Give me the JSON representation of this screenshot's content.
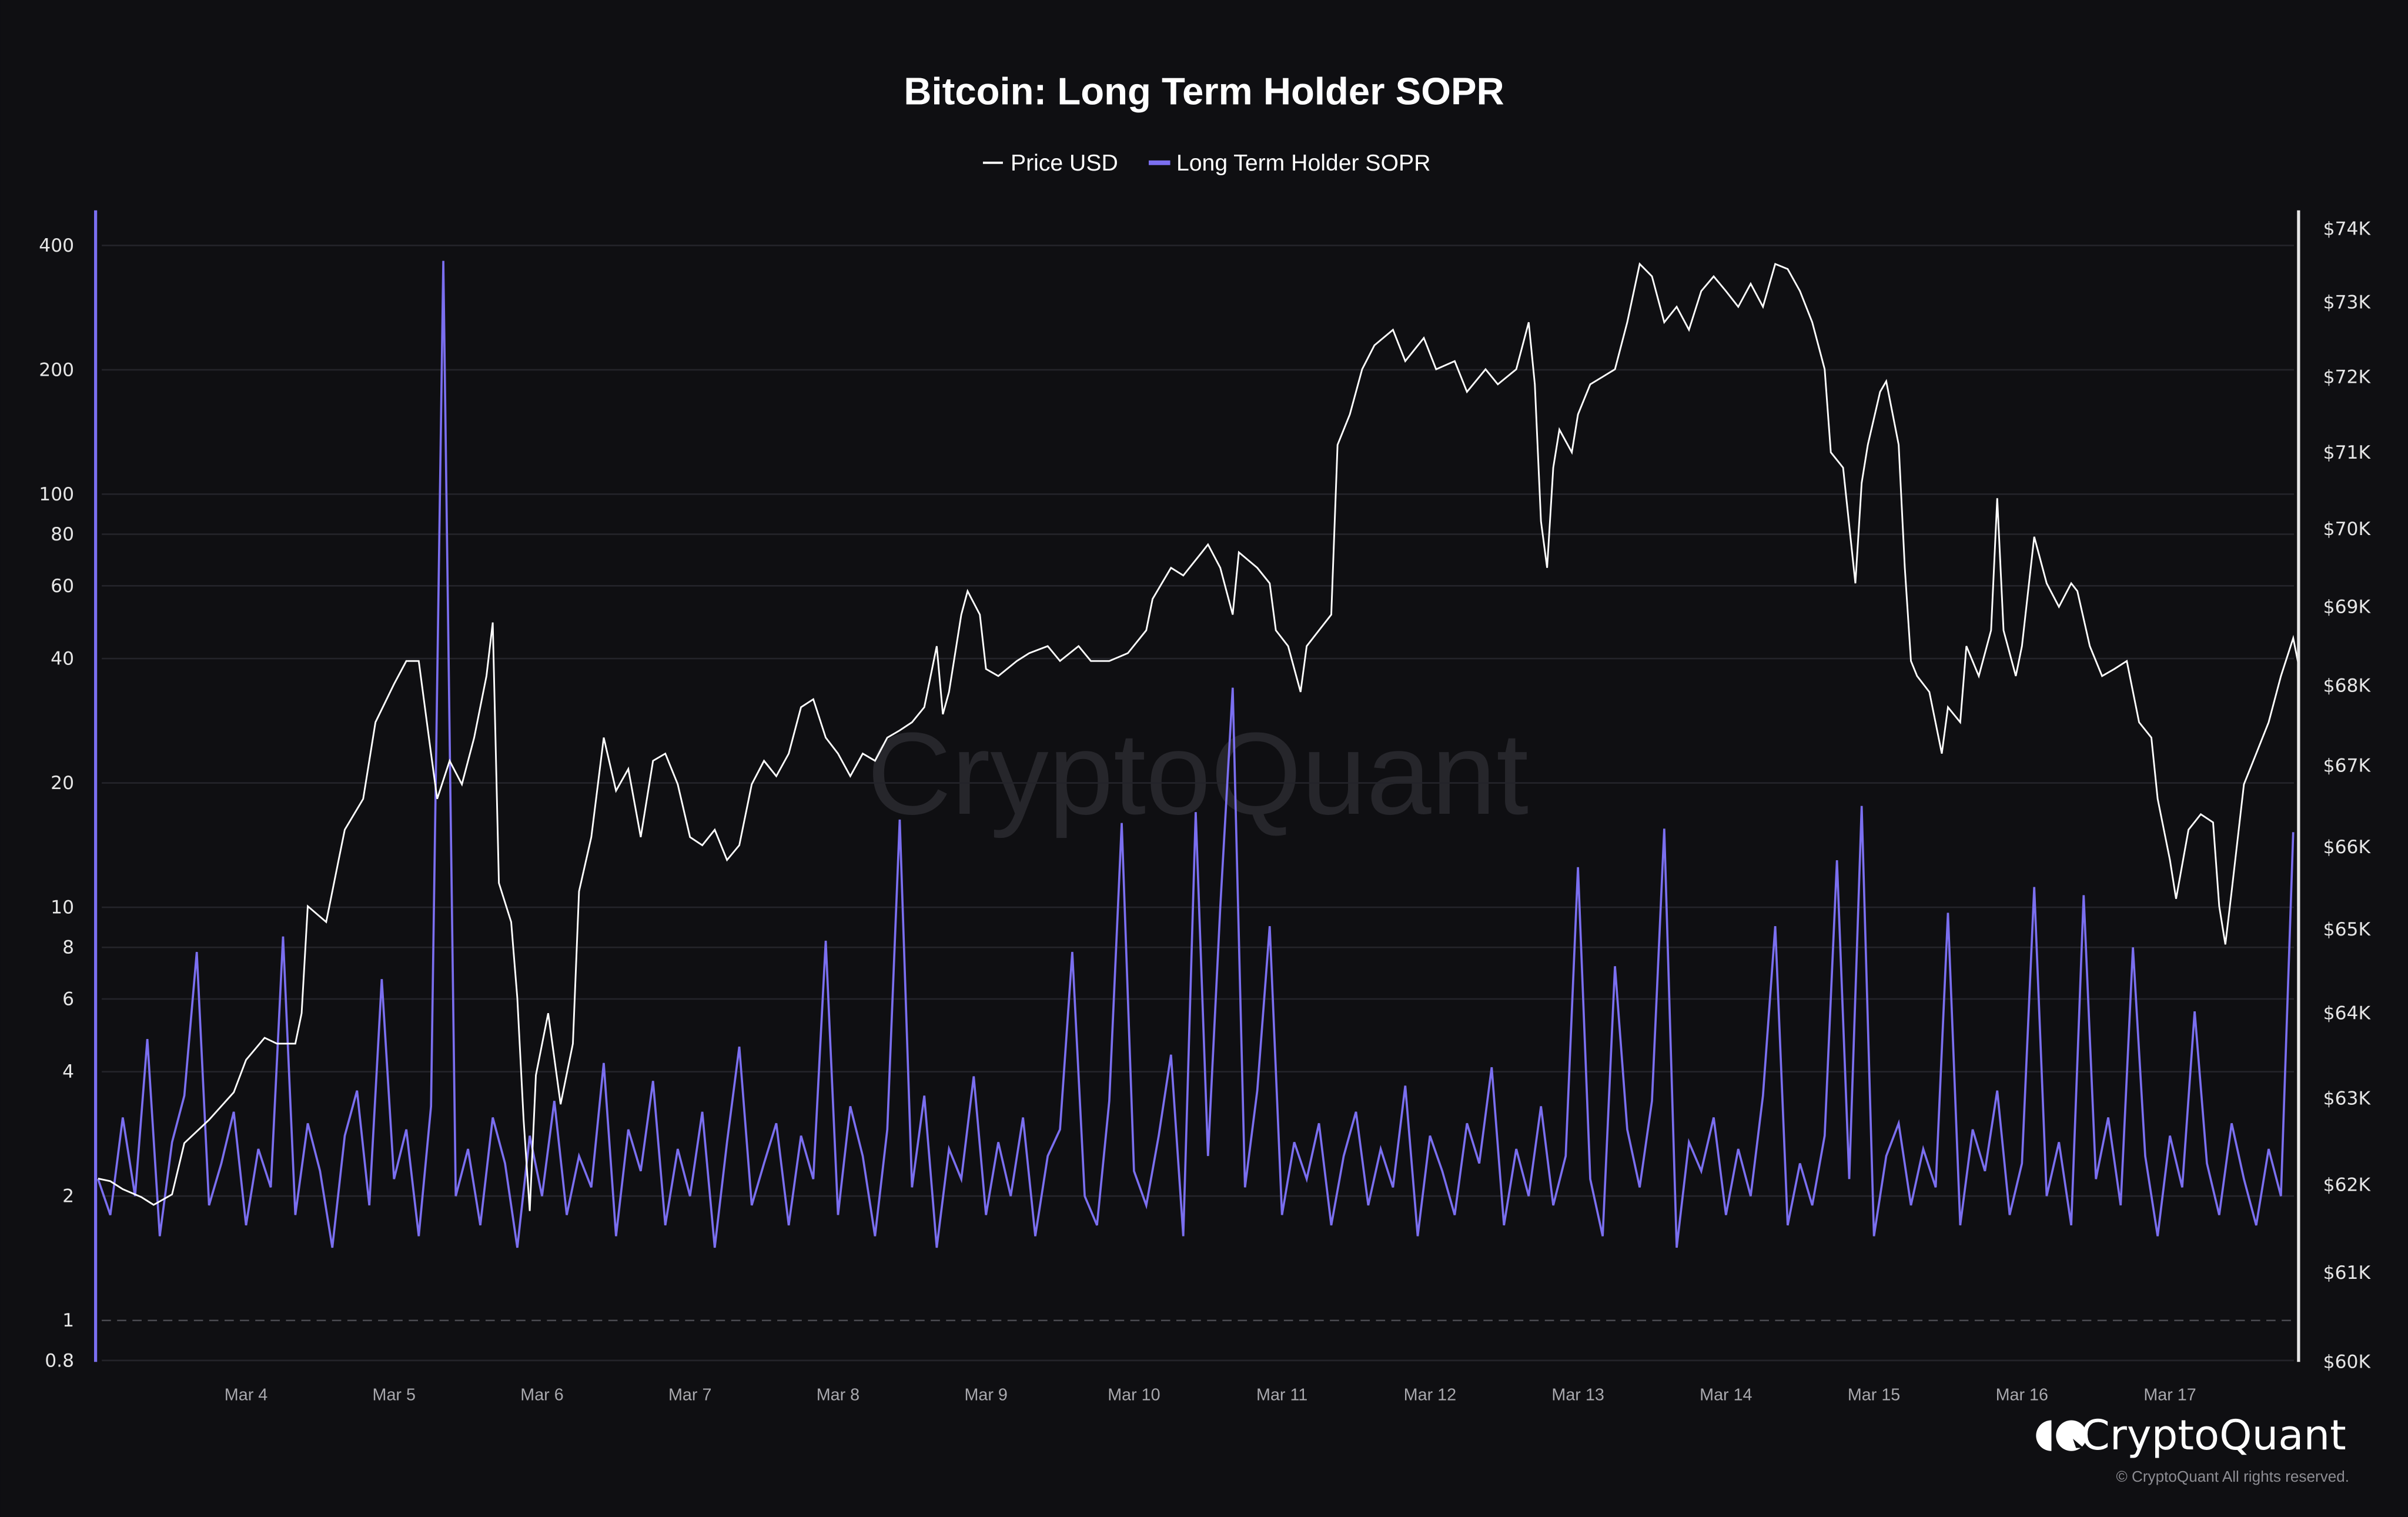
{
  "chart_data": {
    "type": "line",
    "title": "Bitcoin: Long Term Holder SOPR",
    "legend_position": "top-center",
    "grid": true,
    "colors": {
      "background": "#0f0f12",
      "price": "#ffffff",
      "sopr": "#7b6ff0"
    },
    "legend": [
      {
        "name": "Price USD",
        "color": "#ffffff"
      },
      {
        "name": "Long Term Holder SOPR",
        "color": "#7b6ff0"
      }
    ],
    "x_ticks": [
      "Mar 4",
      "Mar 5",
      "Mar 6",
      "Mar 7",
      "Mar 8",
      "Mar 9",
      "Mar 10",
      "Mar 11",
      "Mar 12",
      "Mar 13",
      "Mar 14",
      "Mar 15",
      "Mar 16",
      "Mar 17"
    ],
    "y_left": {
      "scale": "log",
      "range": [
        0.8,
        450
      ],
      "ticks": [
        "400",
        "200",
        "100",
        "80",
        "60",
        "40",
        "20",
        "10",
        "8",
        "6",
        "4",
        "2",
        "1",
        "0.8"
      ],
      "reference_line": 1
    },
    "y_right": {
      "scale": "log",
      "range": [
        60000,
        74000
      ],
      "ticks": [
        "$74K",
        "$73K",
        "$72K",
        "$71K",
        "$70K",
        "$69K",
        "$68K",
        "$67K",
        "$66K",
        "$65K",
        "$64K",
        "$63K",
        "$62K",
        "$61K",
        "$60K"
      ]
    },
    "series": [
      {
        "name": "Price USD",
        "axis": "right",
        "points": [
          [
            "Mar 3 00:00",
            62070
          ],
          [
            "Mar 3 02:00",
            62040
          ],
          [
            "Mar 3 04:00",
            61950
          ],
          [
            "Mar 3 07:00",
            61860
          ],
          [
            "Mar 3 09:00",
            61770
          ],
          [
            "Mar 3 12:00",
            61890
          ],
          [
            "Mar 3 14:00",
            62480
          ],
          [
            "Mar 3 18:00",
            62750
          ],
          [
            "Mar 3 22:00",
            63070
          ],
          [
            "Mar 4 00:00",
            63450
          ],
          [
            "Mar 4 03:00",
            63710
          ],
          [
            "Mar 4 05:00",
            63640
          ],
          [
            "Mar 4 08:00",
            63640
          ],
          [
            "Mar 4 09:00",
            64000
          ],
          [
            "Mar 4 10:00",
            65280
          ],
          [
            "Mar 4 13:00",
            65090
          ],
          [
            "Mar 4 15:00",
            65840
          ],
          [
            "Mar 4 16:00",
            66210
          ],
          [
            "Mar 4 19:00",
            66590
          ],
          [
            "Mar 4 21:00",
            67540
          ],
          [
            "Mar 5 00:00",
            68020
          ],
          [
            "Mar 5 02:00",
            68310
          ],
          [
            "Mar 5 04:00",
            68310
          ],
          [
            "Mar 5 06:00",
            67150
          ],
          [
            "Mar 5 07:00",
            66590
          ],
          [
            "Mar 5 09:00",
            67060
          ],
          [
            "Mar 5 11:00",
            66770
          ],
          [
            "Mar 5 13:00",
            67350
          ],
          [
            "Mar 5 15:00",
            68120
          ],
          [
            "Mar 5 16:00",
            68800
          ],
          [
            "Mar 5 17:00",
            65560
          ],
          [
            "Mar 5 19:00",
            65090
          ],
          [
            "Mar 5 20:00",
            64180
          ],
          [
            "Mar 5 21:00",
            62750
          ],
          [
            "Mar 5 22:00",
            61700
          ],
          [
            "Mar 5 23:00",
            63270
          ],
          [
            "Mar 6 01:00",
            64000
          ],
          [
            "Mar 6 03:00",
            62930
          ],
          [
            "Mar 6 05:00",
            63640
          ],
          [
            "Mar 6 06:00",
            65460
          ],
          [
            "Mar 6 08:00",
            66120
          ],
          [
            "Mar 6 10:00",
            67350
          ],
          [
            "Mar 6 12:00",
            66690
          ],
          [
            "Mar 6 14:00",
            66960
          ],
          [
            "Mar 6 16:00",
            66120
          ],
          [
            "Mar 6 18:00",
            67060
          ],
          [
            "Mar 6 20:00",
            67150
          ],
          [
            "Mar 6 22:00",
            66770
          ],
          [
            "Mar 7 00:00",
            66120
          ],
          [
            "Mar 7 02:00",
            66020
          ],
          [
            "Mar 7 04:00",
            66210
          ],
          [
            "Mar 7 06:00",
            65840
          ],
          [
            "Mar 7 08:00",
            66020
          ],
          [
            "Mar 7 10:00",
            66770
          ],
          [
            "Mar 7 12:00",
            67060
          ],
          [
            "Mar 7 14:00",
            66870
          ],
          [
            "Mar 7 16:00",
            67150
          ],
          [
            "Mar 7 18:00",
            67730
          ],
          [
            "Mar 7 20:00",
            67830
          ],
          [
            "Mar 7 22:00",
            67350
          ],
          [
            "Mar 8 00:00",
            67150
          ],
          [
            "Mar 8 02:00",
            66870
          ],
          [
            "Mar 8 04:00",
            67150
          ],
          [
            "Mar 8 06:00",
            67060
          ],
          [
            "Mar 8 08:00",
            67350
          ],
          [
            "Mar 8 10:00",
            67440
          ],
          [
            "Mar 8 12:00",
            67540
          ],
          [
            "Mar 8 14:00",
            67730
          ],
          [
            "Mar 8 16:00",
            68500
          ],
          [
            "Mar 8 17:00",
            67640
          ],
          [
            "Mar 8 18:00",
            67920
          ],
          [
            "Mar 8 20:00",
            68900
          ],
          [
            "Mar 8 21:00",
            69200
          ],
          [
            "Mar 8 23:00",
            68900
          ],
          [
            "Mar 9 00:00",
            68210
          ],
          [
            "Mar 9 02:00",
            68120
          ],
          [
            "Mar 9 05:00",
            68310
          ],
          [
            "Mar 9 07:00",
            68410
          ],
          [
            "Mar 9 10:00",
            68500
          ],
          [
            "Mar 9 12:00",
            68310
          ],
          [
            "Mar 9 15:00",
            68500
          ],
          [
            "Mar 9 17:00",
            68310
          ],
          [
            "Mar 9 20:00",
            68310
          ],
          [
            "Mar 9 23:00",
            68410
          ],
          [
            "Mar 10 02:00",
            68700
          ],
          [
            "Mar 10 03:00",
            69100
          ],
          [
            "Mar 10 06:00",
            69500
          ],
          [
            "Mar 10 08:00",
            69400
          ],
          [
            "Mar 10 11:00",
            69700
          ],
          [
            "Mar 10 12:00",
            69800
          ],
          [
            "Mar 10 14:00",
            69500
          ],
          [
            "Mar 10 16:00",
            68900
          ],
          [
            "Mar 10 17:00",
            69700
          ],
          [
            "Mar 10 20:00",
            69500
          ],
          [
            "Mar 10 22:00",
            69300
          ],
          [
            "Mar 10 23:00",
            68700
          ],
          [
            "Mar 11 01:00",
            68500
          ],
          [
            "Mar 11 03:00",
            67920
          ],
          [
            "Mar 11 04:00",
            68500
          ],
          [
            "Mar 11 06:00",
            68700
          ],
          [
            "Mar 11 08:00",
            68900
          ],
          [
            "Mar 11 09:00",
            71100
          ],
          [
            "Mar 11 11:00",
            71500
          ],
          [
            "Mar 11 13:00",
            72100
          ],
          [
            "Mar 11 15:00",
            72420
          ],
          [
            "Mar 11 18:00",
            72630
          ],
          [
            "Mar 11 20:00",
            72210
          ],
          [
            "Mar 11 23:00",
            72520
          ],
          [
            "Mar 12 01:00",
            72100
          ],
          [
            "Mar 12 04:00",
            72210
          ],
          [
            "Mar 12 06:00",
            71800
          ],
          [
            "Mar 12 09:00",
            72100
          ],
          [
            "Mar 12 11:00",
            71900
          ],
          [
            "Mar 12 14:00",
            72100
          ],
          [
            "Mar 12 16:00",
            72730
          ],
          [
            "Mar 12 17:00",
            71900
          ],
          [
            "Mar 12 18:00",
            70100
          ],
          [
            "Mar 12 19:00",
            69500
          ],
          [
            "Mar 12 20:00",
            70800
          ],
          [
            "Mar 12 21:00",
            71300
          ],
          [
            "Mar 12 23:00",
            71000
          ],
          [
            "Mar 13 00:00",
            71500
          ],
          [
            "Mar 13 02:00",
            71900
          ],
          [
            "Mar 13 04:00",
            72000
          ],
          [
            "Mar 13 06:00",
            72100
          ],
          [
            "Mar 13 08:00",
            72730
          ],
          [
            "Mar 13 10:00",
            73520
          ],
          [
            "Mar 13 12:00",
            73350
          ],
          [
            "Mar 13 14:00",
            72730
          ],
          [
            "Mar 13 16:00",
            72940
          ],
          [
            "Mar 13 18:00",
            72630
          ],
          [
            "Mar 13 20:00",
            73150
          ],
          [
            "Mar 13 22:00",
            73350
          ],
          [
            "Mar 14 00:00",
            73150
          ],
          [
            "Mar 14 02:00",
            72940
          ],
          [
            "Mar 14 04:00",
            73250
          ],
          [
            "Mar 14 06:00",
            72940
          ],
          [
            "Mar 14 08:00",
            73520
          ],
          [
            "Mar 14 10:00",
            73450
          ],
          [
            "Mar 14 12:00",
            73150
          ],
          [
            "Mar 14 14:00",
            72730
          ],
          [
            "Mar 14 16:00",
            72100
          ],
          [
            "Mar 14 17:00",
            71000
          ],
          [
            "Mar 14 19:00",
            70800
          ],
          [
            "Mar 14 21:00",
            69300
          ],
          [
            "Mar 14 22:00",
            70600
          ],
          [
            "Mar 14 23:00",
            71100
          ],
          [
            "Mar 15 01:00",
            71800
          ],
          [
            "Mar 15 02:00",
            71940
          ],
          [
            "Mar 15 04:00",
            71100
          ],
          [
            "Mar 15 05:00",
            69500
          ],
          [
            "Mar 15 06:00",
            68310
          ],
          [
            "Mar 15 07:00",
            68120
          ],
          [
            "Mar 15 09:00",
            67920
          ],
          [
            "Mar 15 11:00",
            67150
          ],
          [
            "Mar 15 12:00",
            67730
          ],
          [
            "Mar 15 14:00",
            67540
          ],
          [
            "Mar 15 15:00",
            68500
          ],
          [
            "Mar 15 17:00",
            68120
          ],
          [
            "Mar 15 19:00",
            68700
          ],
          [
            "Mar 15 20:00",
            70400
          ],
          [
            "Mar 15 21:00",
            68700
          ],
          [
            "Mar 15 23:00",
            68120
          ],
          [
            "Mar 16 00:00",
            68500
          ],
          [
            "Mar 16 02:00",
            69900
          ],
          [
            "Mar 16 04:00",
            69300
          ],
          [
            "Mar 16 06:00",
            69000
          ],
          [
            "Mar 16 08:00",
            69300
          ],
          [
            "Mar 16 09:00",
            69200
          ],
          [
            "Mar 16 11:00",
            68500
          ],
          [
            "Mar 16 13:00",
            68120
          ],
          [
            "Mar 16 15:00",
            68210
          ],
          [
            "Mar 16 17:00",
            68310
          ],
          [
            "Mar 16 19:00",
            67540
          ],
          [
            "Mar 16 21:00",
            67350
          ],
          [
            "Mar 16 22:00",
            66590
          ],
          [
            "Mar 17 00:00",
            65840
          ],
          [
            "Mar 17 01:00",
            65370
          ],
          [
            "Mar 17 03:00",
            66210
          ],
          [
            "Mar 17 05:00",
            66400
          ],
          [
            "Mar 17 07:00",
            66300
          ],
          [
            "Mar 17 08:00",
            65280
          ],
          [
            "Mar 17 09:00",
            64820
          ],
          [
            "Mar 17 10:00",
            65460
          ],
          [
            "Mar 17 12:00",
            66770
          ],
          [
            "Mar 17 14:00",
            67150
          ],
          [
            "Mar 17 16:00",
            67540
          ],
          [
            "Mar 17 18:00",
            68120
          ],
          [
            "Mar 17 20:00",
            68600
          ],
          [
            "Mar 17 21:00",
            68210
          ]
        ]
      },
      {
        "name": "Long Term Holder SOPR",
        "axis": "left",
        "start": "Mar 3 00:00",
        "interval_hours": 2,
        "values": [
          2.2,
          1.8,
          3.1,
          2.0,
          4.8,
          1.6,
          2.7,
          3.5,
          7.8,
          1.9,
          2.4,
          3.2,
          1.7,
          2.6,
          2.1,
          8.5,
          1.8,
          3.0,
          2.3,
          1.5,
          2.8,
          3.6,
          1.9,
          6.7,
          2.2,
          2.9,
          1.6,
          3.3,
          367,
          2.0,
          2.6,
          1.7,
          3.1,
          2.4,
          1.5,
          2.8,
          2.0,
          3.4,
          1.8,
          2.5,
          2.1,
          4.2,
          1.6,
          2.9,
          2.3,
          3.8,
          1.7,
          2.6,
          2.0,
          3.2,
          1.5,
          2.7,
          4.6,
          1.9,
          2.4,
          3.0,
          1.7,
          2.8,
          2.2,
          8.3,
          1.8,
          3.3,
          2.5,
          1.6,
          2.9,
          16.3,
          2.1,
          3.5,
          1.5,
          2.6,
          2.2,
          3.9,
          1.8,
          2.7,
          2.0,
          3.1,
          1.6,
          2.5,
          2.9,
          7.8,
          2.0,
          1.7,
          3.4,
          16,
          2.3,
          1.9,
          2.8,
          4.4,
          1.6,
          17,
          2.5,
          10,
          34,
          2.1,
          3.6,
          9,
          1.8,
          2.7,
          2.2,
          3.0,
          1.7,
          2.5,
          3.2,
          1.9,
          2.6,
          2.1,
          3.7,
          1.6,
          2.8,
          2.3,
          1.8,
          3.0,
          2.4,
          4.1,
          1.7,
          2.6,
          2.0,
          3.3,
          1.9,
          2.5,
          12.5,
          2.2,
          1.6,
          7.2,
          2.9,
          2.1,
          3.4,
          15.5,
          1.5,
          2.7,
          2.3,
          3.1,
          1.8,
          2.6,
          2.0,
          3.5,
          9,
          1.7,
          2.4,
          1.9,
          2.8,
          13,
          2.2,
          17.6,
          1.6,
          2.5,
          3.0,
          1.9,
          2.6,
          2.1,
          9.7,
          1.7,
          2.9,
          2.3,
          3.6,
          1.8,
          2.4,
          11.2,
          2.0,
          2.7,
          1.7,
          10.7,
          2.2,
          3.1,
          1.9,
          8,
          2.5,
          1.6,
          2.8,
          2.1,
          5.6,
          2.4,
          1.8,
          3.0,
          2.2,
          1.7,
          2.6,
          2.0,
          15.2
        ]
      }
    ]
  },
  "watermark": "CryptoQuant",
  "footer": {
    "brand": "CryptoQuant",
    "copyright": "© CryptoQuant All rights reserved."
  }
}
